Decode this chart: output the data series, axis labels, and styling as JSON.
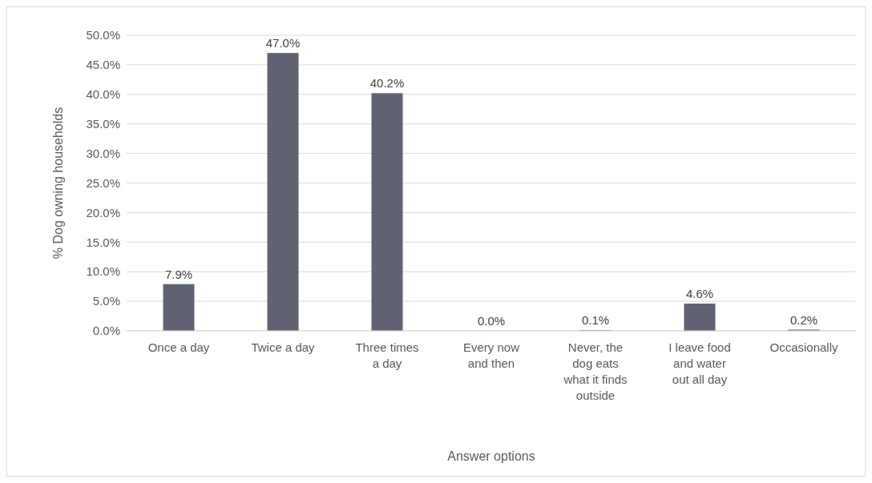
{
  "chart_data": {
    "type": "bar",
    "xlabel": "Answer options",
    "ylabel": "% Dog owning households",
    "categories": [
      "Once a day",
      "Twice a day",
      "Three times a day",
      "Every now and then",
      "Never, the dog eats what it finds outside",
      "I leave food and water out all day",
      "Occasionally"
    ],
    "values": [
      7.9,
      47.0,
      40.2,
      0.0,
      0.1,
      4.6,
      0.2
    ],
    "value_labels": [
      "7.9%",
      "47.0%",
      "40.2%",
      "0.0%",
      "0.1%",
      "4.6%",
      "0.2%"
    ],
    "color": "#5f6270",
    "ylim": [
      0,
      50
    ],
    "yticks": [
      {
        "value": 0,
        "label": "0.0%"
      },
      {
        "value": 5,
        "label": "5.0%"
      },
      {
        "value": 10,
        "label": "10.0%"
      },
      {
        "value": 15,
        "label": "15.0%"
      },
      {
        "value": 20,
        "label": "20.0%"
      },
      {
        "value": 25,
        "label": "25.0%"
      },
      {
        "value": 30,
        "label": "30.0%"
      },
      {
        "value": 35,
        "label": "35.0%"
      },
      {
        "value": 40,
        "label": "40.0%"
      },
      {
        "value": 45,
        "label": "45.0%"
      },
      {
        "value": 50,
        "label": "50.0%"
      }
    ],
    "grid": "y"
  }
}
